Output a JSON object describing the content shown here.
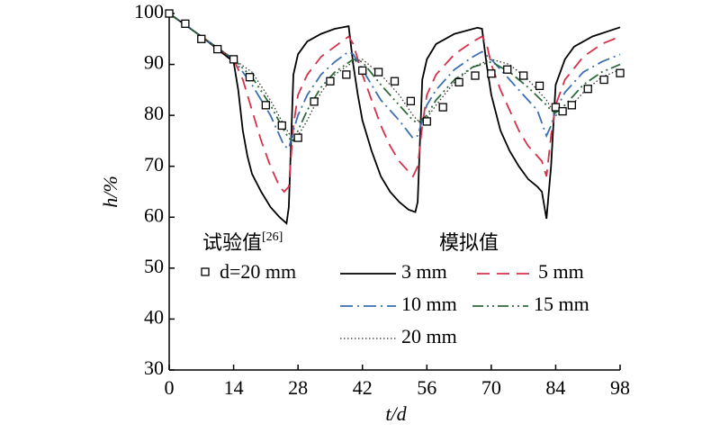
{
  "chart_data": {
    "type": "line",
    "xlabel": "t/d",
    "ylabel": "h/%",
    "xlim": [
      0,
      98
    ],
    "xticks": [
      0,
      14,
      28,
      42,
      56,
      70,
      84,
      98
    ],
    "ylim": [
      30,
      100
    ],
    "yticks": [
      30,
      40,
      50,
      60,
      70,
      80,
      90,
      100
    ],
    "legend_groups": {
      "experiment": "试验值",
      "experiment_ref": "[26]",
      "simulation": "模拟值"
    },
    "series": [
      {
        "name": "3 mm",
        "color": "#000000",
        "dash": "solid",
        "x": [
          0,
          7,
          14,
          15,
          16,
          17,
          18,
          20,
          22,
          24,
          25.5,
          26,
          27,
          28,
          30,
          33,
          36,
          39,
          40,
          41,
          42,
          44,
          46,
          48,
          50,
          52,
          53.5,
          54,
          55,
          56,
          58,
          62,
          67,
          68,
          69,
          70,
          72,
          74,
          76,
          78,
          80,
          81,
          82,
          83,
          84,
          86,
          88,
          92,
          98
        ],
        "values": [
          100,
          95.5,
          90.5,
          85,
          77,
          72,
          68.5,
          65,
          62,
          60,
          58.8,
          62,
          88,
          92,
          94.5,
          96,
          97,
          97.5,
          90,
          84,
          79,
          73,
          68,
          65,
          63,
          61.5,
          61,
          63,
          87,
          91,
          94,
          96,
          97.2,
          97,
          90,
          84,
          77,
          73,
          70,
          67.5,
          66,
          65,
          59.7,
          70,
          86,
          91,
          93.5,
          95.5,
          97.3
        ]
      },
      {
        "name": "5 mm",
        "color": "#d6304a",
        "dash": "dashed",
        "x": [
          0,
          7,
          14,
          16,
          18,
          20,
          22,
          24,
          25,
          26,
          27,
          28,
          30,
          33,
          36,
          39,
          40,
          42,
          44,
          46,
          48,
          50,
          52,
          53,
          54,
          55,
          56,
          58,
          62,
          66,
          68,
          69,
          70,
          72,
          74,
          76,
          78,
          80,
          81,
          82,
          83,
          84,
          86,
          90,
          94,
          98
        ],
        "values": [
          100,
          95.5,
          91,
          87,
          81,
          75,
          70,
          66,
          65,
          66,
          78,
          84,
          88,
          91.5,
          93.5,
          95.5,
          94,
          88,
          83,
          78,
          74,
          71,
          69,
          68,
          70,
          78,
          84,
          88,
          92,
          94.5,
          95.5,
          94,
          90,
          85,
          81,
          77,
          74,
          72,
          71,
          68,
          76,
          82,
          87,
          91.5,
          94,
          95.5
        ]
      },
      {
        "name": "10 mm",
        "color": "#3a6fb0",
        "dash": "dashdot",
        "x": [
          0,
          7,
          14,
          18,
          22,
          25,
          26,
          27,
          28,
          30,
          33,
          36,
          39,
          40,
          42,
          44,
          46,
          50,
          53,
          54,
          55,
          56,
          58,
          62,
          66,
          68,
          70,
          72,
          76,
          80,
          82,
          83,
          84,
          86,
          90,
          94,
          98
        ],
        "values": [
          100,
          95.5,
          91,
          86,
          80,
          74,
          73.5,
          77,
          80,
          84,
          88,
          90.5,
          92.5,
          92,
          89,
          86,
          83,
          79,
          75.5,
          76,
          79,
          82,
          85,
          89,
          91.5,
          92.5,
          91,
          89,
          85,
          81,
          76,
          78,
          81,
          84.5,
          88.5,
          90.5,
          92
        ]
      },
      {
        "name": "15 mm",
        "color": "#2e6b3a",
        "dash": "dashdotdot",
        "x": [
          0,
          7,
          14,
          18,
          22,
          25,
          26,
          27,
          28,
          30,
          33,
          36,
          40,
          42,
          46,
          50,
          53,
          54,
          56,
          58,
          62,
          66,
          70,
          74,
          78,
          82,
          83,
          84,
          86,
          90,
          94,
          98
        ],
        "values": [
          100,
          95.5,
          91,
          87.5,
          82,
          77,
          75.5,
          75,
          77,
          81,
          85.5,
          88.5,
          91,
          90.5,
          86,
          82,
          79,
          78.5,
          80,
          83,
          87,
          89.5,
          90.5,
          88.5,
          85.5,
          82,
          81,
          80.5,
          82,
          86,
          88.5,
          90
        ]
      },
      {
        "name": "20 mm",
        "color": "#333333",
        "dash": "dotted",
        "x": [
          0,
          7,
          14,
          18,
          22,
          25,
          27,
          28,
          30,
          33,
          36,
          40,
          42,
          46,
          50,
          53,
          54,
          56,
          58,
          62,
          66,
          70,
          74,
          78,
          82,
          84,
          86,
          90,
          94,
          98
        ],
        "values": [
          100,
          95.5,
          91,
          88.5,
          83,
          78,
          75,
          76,
          79,
          84.5,
          88,
          90.5,
          91,
          88,
          84,
          80,
          79,
          79.5,
          82,
          86.5,
          89.5,
          91,
          90,
          87,
          83,
          80,
          80.5,
          84.5,
          87.5,
          89
        ]
      }
    ],
    "experiment": {
      "name": "d=20 mm",
      "color": "#000000",
      "x": [
        0,
        3.5,
        7,
        10.5,
        14,
        17.5,
        21,
        24.5,
        28,
        31.5,
        35,
        38.5,
        42,
        45.5,
        49,
        52.5,
        56,
        59.5,
        63,
        66.5,
        70,
        73.5,
        77,
        80.5,
        84,
        85.5,
        87.5,
        91,
        94.5,
        98
      ],
      "values": [
        100,
        98,
        95,
        93,
        91,
        87.5,
        82,
        78,
        75.6,
        82.7,
        86.7,
        88,
        88.8,
        88.5,
        86.7,
        82.8,
        78.8,
        81.6,
        86.5,
        87.8,
        88.2,
        89,
        87.8,
        85.8,
        81.6,
        80.8,
        82,
        85.2,
        87,
        88.3
      ]
    }
  }
}
